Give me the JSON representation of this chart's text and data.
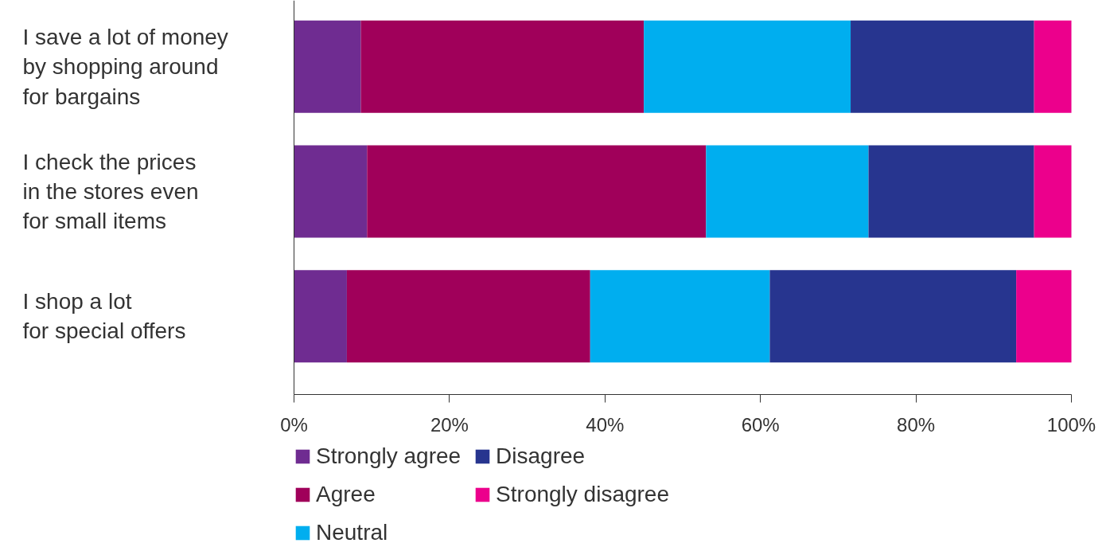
{
  "chart_data": {
    "type": "bar",
    "orientation": "horizontal",
    "stacked": true,
    "categories": [
      "I save a lot of money\nby shopping around\nfor bargains",
      "I check the prices\nin the stores even\nfor small items",
      "I shop a lot\nfor special offers"
    ],
    "series": [
      {
        "name": "Strongly agree",
        "color": "#6f2c91",
        "values": [
          8.6,
          9.4,
          6.8
        ]
      },
      {
        "name": "Agree",
        "color": "#a0005a",
        "values": [
          36.4,
          43.6,
          31.3
        ]
      },
      {
        "name": "Neutral",
        "color": "#00aeef",
        "values": [
          26.6,
          20.9,
          23.1
        ]
      },
      {
        "name": "Disagree",
        "color": "#27358f",
        "values": [
          23.6,
          21.3,
          31.7
        ]
      },
      {
        "name": "Strongly disagree",
        "color": "#ec008c",
        "values": [
          4.8,
          4.8,
          7.1
        ]
      }
    ],
    "xlim": [
      0,
      100
    ],
    "xticks": [
      {
        "value": 0,
        "label": "0%"
      },
      {
        "value": 20,
        "label": "20%"
      },
      {
        "value": 40,
        "label": "40%"
      },
      {
        "value": 60,
        "label": "60%"
      },
      {
        "value": 80,
        "label": "80%"
      },
      {
        "value": 100,
        "label": "100%"
      }
    ],
    "grid": false,
    "legend": "bottom"
  }
}
